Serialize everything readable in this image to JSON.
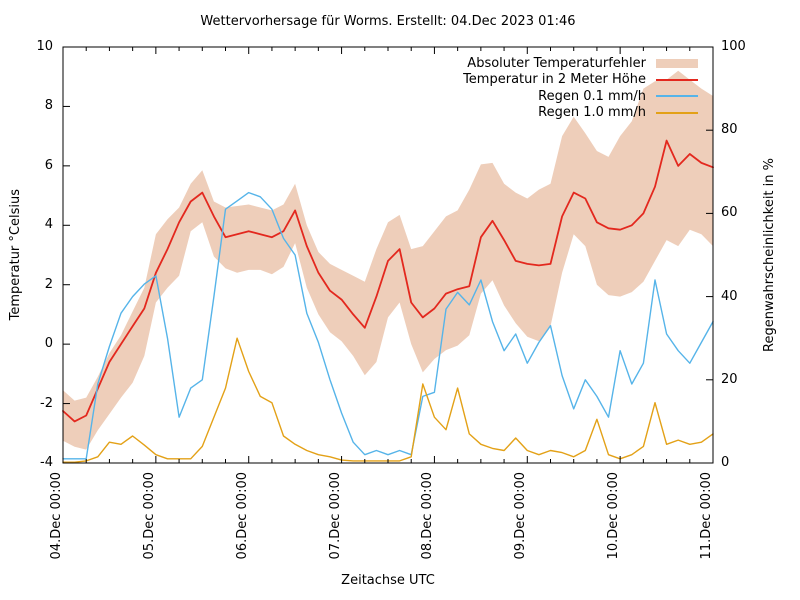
{
  "colors": {
    "band": "#eeceba",
    "temperature": "#e3281e",
    "rain01": "#56b4e9",
    "rain10": "#e3a117",
    "axis": "#000000",
    "background": "#ffffff"
  },
  "legend": {
    "entries": [
      {
        "label": "Absoluter Temperaturfehler",
        "swatch": "band",
        "color_key": "band"
      },
      {
        "label": "Temperatur in 2 Meter Höhe",
        "swatch": "line",
        "color_key": "temperature"
      },
      {
        "label": "Regen 0.1 mm/h",
        "swatch": "line",
        "color_key": "rain01"
      },
      {
        "label": "Regen 1.0 mm/h",
        "swatch": "line",
        "color_key": "rain10"
      }
    ]
  },
  "chart_data": {
    "type": "line",
    "title": "Wettervorhersage für Worms. Erstellt: 04.Dec 2023 01:46",
    "grid": false,
    "legend_position": "top-right-inside",
    "x_axis": {
      "label": "Zeitachse UTC",
      "unit": "hours since 04.Dec 00:00",
      "min_hours": 0,
      "max_hours": 168,
      "major_step_hours": 24,
      "minor_step_hours": 6,
      "tick_hours": [
        0,
        24,
        48,
        72,
        96,
        120,
        144,
        168
      ],
      "tick_labels": [
        "04.Dec 00:00",
        "05.Dec 00:00",
        "06.Dec 00:00",
        "07.Dec 00:00",
        "08.Dec 00:00",
        "09.Dec 00:00",
        "10.Dec 00:00",
        "11.Dec 00:00"
      ]
    },
    "left_axis": {
      "label": "Temperatur °Celsius",
      "min": -4,
      "max": 10,
      "tick_values": [
        -4,
        -2,
        0,
        2,
        4,
        6,
        8,
        10
      ],
      "tick_labels": [
        "-4",
        "-2",
        "0",
        "2",
        "4",
        "6",
        "8",
        "10"
      ]
    },
    "right_axis": {
      "label": "Regenwahrscheinlichkeit in %",
      "min": 0,
      "max": 100,
      "tick_values": [
        0,
        20,
        40,
        60,
        80,
        100
      ],
      "tick_labels": [
        "0",
        "20",
        "40",
        "60",
        "80",
        "100"
      ]
    },
    "hours": [
      0,
      3,
      6,
      9,
      12,
      15,
      18,
      21,
      24,
      27,
      30,
      33,
      36,
      39,
      42,
      45,
      48,
      51,
      54,
      57,
      60,
      63,
      66,
      69,
      72,
      75,
      78,
      81,
      84,
      87,
      90,
      93,
      96,
      99,
      102,
      105,
      108,
      111,
      114,
      117,
      120,
      123,
      126,
      129,
      132,
      135,
      138,
      141,
      144,
      147,
      150,
      153,
      156,
      159,
      162,
      165,
      168
    ],
    "series": [
      {
        "key": "temp_error",
        "name": "Absoluter Temperaturfehler",
        "type": "band",
        "axis": "left",
        "color_key": "band",
        "upper": [
          -1.55,
          -1.9,
          -1.8,
          -1.1,
          -0.3,
          0.3,
          1.1,
          1.9,
          3.7,
          4.2,
          4.6,
          5.4,
          5.85,
          4.8,
          4.6,
          4.65,
          4.7,
          4.6,
          4.5,
          4.7,
          5.4,
          4.0,
          3.1,
          2.7,
          2.5,
          2.3,
          2.1,
          3.2,
          4.1,
          4.35,
          3.2,
          3.3,
          3.8,
          4.3,
          4.5,
          5.2,
          6.05,
          6.1,
          5.4,
          5.1,
          4.9,
          5.2,
          5.4,
          7.0,
          7.65,
          7.1,
          6.5,
          6.3,
          7.0,
          7.5,
          8.6,
          8.85,
          8.9,
          9.2,
          8.9,
          8.6,
          8.35
        ],
        "lower": [
          -3.25,
          -3.45,
          -3.55,
          -2.9,
          -2.35,
          -1.8,
          -1.3,
          -0.4,
          1.4,
          1.9,
          2.3,
          3.8,
          4.1,
          2.95,
          2.55,
          2.4,
          2.5,
          2.5,
          2.35,
          2.6,
          3.4,
          1.9,
          1.0,
          0.4,
          0.1,
          -0.4,
          -1.05,
          -0.6,
          0.9,
          1.4,
          0.0,
          -0.95,
          -0.5,
          -0.2,
          -0.05,
          0.3,
          1.7,
          2.15,
          1.3,
          0.7,
          0.25,
          0.1,
          0.6,
          2.4,
          3.7,
          3.3,
          2.0,
          1.65,
          1.6,
          1.75,
          2.1,
          2.8,
          3.5,
          3.3,
          3.85,
          3.7,
          3.3
        ]
      },
      {
        "key": "temperature",
        "name": "Temperatur in 2 Meter Höhe",
        "type": "line",
        "axis": "left",
        "color_key": "temperature",
        "values": [
          -2.25,
          -2.6,
          -2.4,
          -1.5,
          -0.6,
          0.0,
          0.6,
          1.2,
          2.4,
          3.2,
          4.1,
          4.8,
          5.1,
          4.3,
          3.6,
          3.7,
          3.8,
          3.7,
          3.6,
          3.8,
          4.5,
          3.3,
          2.4,
          1.8,
          1.5,
          1.0,
          0.55,
          1.6,
          2.8,
          3.2,
          1.4,
          0.9,
          1.2,
          1.7,
          1.85,
          1.95,
          3.6,
          4.15,
          3.5,
          2.8,
          2.7,
          2.65,
          2.7,
          4.3,
          5.1,
          4.9,
          4.1,
          3.9,
          3.85,
          4.0,
          4.4,
          5.3,
          6.85,
          6.0,
          6.4,
          6.1,
          5.95
        ]
      },
      {
        "key": "rain01",
        "name": "Regen 0.1 mm/h",
        "type": "line",
        "axis": "right",
        "color_key": "rain01",
        "values": [
          1,
          1,
          1,
          19,
          28,
          36,
          40,
          43,
          45,
          30,
          11,
          18,
          20,
          40,
          61,
          63,
          65,
          64,
          61,
          54,
          50,
          36,
          29,
          20,
          12,
          5,
          2,
          3,
          2,
          3,
          2,
          16,
          17,
          37,
          41,
          38,
          44,
          34,
          27,
          31,
          24,
          29,
          33,
          21,
          13,
          20,
          16,
          11,
          27,
          19,
          24,
          44,
          31,
          27,
          24,
          29,
          34
        ]
      },
      {
        "key": "rain10",
        "name": "Regen 1.0 mm/h",
        "type": "line",
        "axis": "right",
        "color_key": "rain10",
        "values": [
          0.2,
          0.2,
          0.5,
          1.5,
          5,
          4.5,
          6.5,
          4.3,
          2,
          1,
          1,
          1,
          4,
          11,
          18,
          30,
          22,
          16,
          14.5,
          6.5,
          4.5,
          3,
          2,
          1.5,
          0.7,
          0.5,
          0.5,
          0.5,
          0.5,
          0.5,
          1.5,
          19,
          11,
          8,
          18,
          7,
          4.5,
          3.5,
          3,
          6,
          3,
          2,
          3,
          2.5,
          1.5,
          3,
          10.5,
          2,
          1,
          2,
          4,
          14.5,
          4.5,
          5.5,
          4.5,
          5,
          7
        ]
      }
    ]
  }
}
